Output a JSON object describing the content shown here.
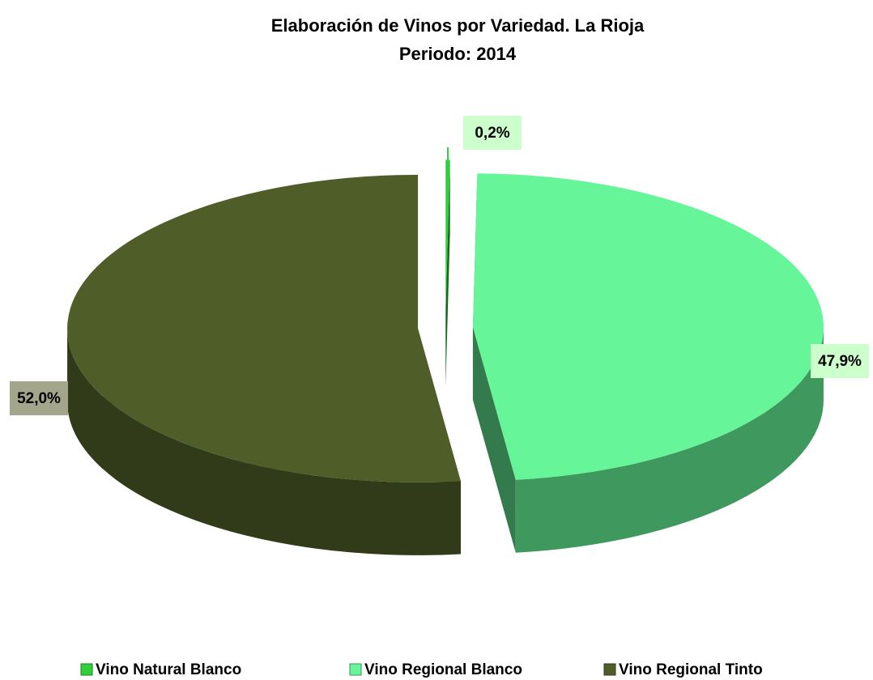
{
  "chart_data": {
    "type": "pie",
    "title": "Elaboración de Vinos por Variedad. La Rioja",
    "subtitle": "Periodo: 2014",
    "categories": [
      "Vino Natural Blanco",
      "Vino Regional Blanco",
      "Vino Regional Tinto"
    ],
    "values": [
      0.2,
      47.9,
      52.0
    ],
    "value_labels": [
      "0,2%",
      "47,9%",
      "52,0%"
    ],
    "colors": [
      "#2fd13a",
      "#66f598",
      "#4f5e28"
    ],
    "legend": "bottom"
  }
}
